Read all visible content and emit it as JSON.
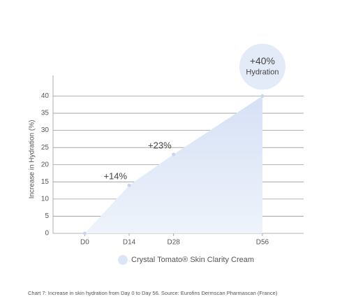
{
  "chart_data": {
    "type": "area",
    "x": [
      0,
      14,
      28,
      56
    ],
    "xticks": [
      {
        "value": 0,
        "label": "D0"
      },
      {
        "value": 14,
        "label": "D14"
      },
      {
        "value": 28,
        "label": "D28"
      },
      {
        "value": 56,
        "label": "D56"
      }
    ],
    "xlim": [
      -10,
      69
    ],
    "ylim": [
      0,
      46
    ],
    "yticks": [
      0,
      5,
      10,
      15,
      20,
      25,
      30,
      35,
      40
    ],
    "ylabel": "Increase in Hydration (%)",
    "grid": true,
    "series": [
      {
        "name": "Crystal Tomato® Skin Clarity Cream",
        "color": "#dbe5f6",
        "values": [
          0,
          14,
          23,
          40
        ],
        "value_labels": [
          null,
          "+14%",
          "+23%",
          "+40%"
        ]
      }
    ],
    "annotation": "Hydration",
    "caption": "Chart 7: Increase in skin hydration from Day 0 to Day 56. Source: Eurofins Dermscan Pharmascan (France)"
  }
}
